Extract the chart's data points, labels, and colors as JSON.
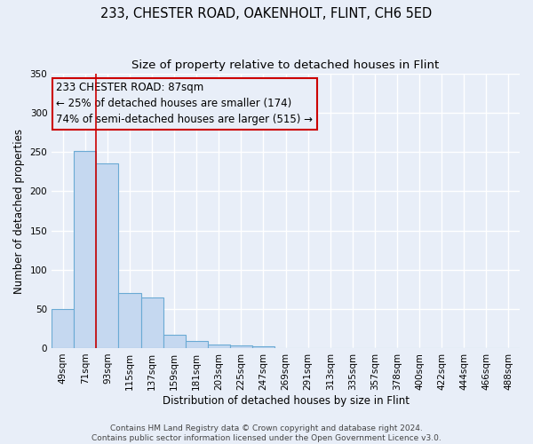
{
  "title1": "233, CHESTER ROAD, OAKENHOLT, FLINT, CH6 5ED",
  "title2": "Size of property relative to detached houses in Flint",
  "xlabel": "Distribution of detached houses by size in Flint",
  "ylabel": "Number of detached properties",
  "bar_labels": [
    "49sqm",
    "71sqm",
    "93sqm",
    "115sqm",
    "137sqm",
    "159sqm",
    "181sqm",
    "203sqm",
    "225sqm",
    "247sqm",
    "269sqm",
    "291sqm",
    "313sqm",
    "335sqm",
    "357sqm",
    "378sqm",
    "400sqm",
    "422sqm",
    "444sqm",
    "466sqm",
    "488sqm"
  ],
  "bar_heights": [
    50,
    252,
    236,
    70,
    65,
    17,
    9,
    5,
    3,
    2,
    0,
    0,
    0,
    0,
    0,
    0,
    0,
    0,
    0,
    0,
    0
  ],
  "bar_color": "#c5d8f0",
  "bar_edgecolor": "#6aaad4",
  "red_line_x": 1.5,
  "annotation_text": "233 CHESTER ROAD: 87sqm\n← 25% of detached houses are smaller (174)\n74% of semi-detached houses are larger (515) →",
  "annotation_box_edgecolor": "#cc0000",
  "annotation_fontsize": 8.5,
  "ylim": [
    0,
    350
  ],
  "yticks": [
    0,
    50,
    100,
    150,
    200,
    250,
    300,
    350
  ],
  "footer1": "Contains HM Land Registry data © Crown copyright and database right 2024.",
  "footer2": "Contains public sector information licensed under the Open Government Licence v3.0.",
  "background_color": "#e8eef8",
  "grid_color": "#ffffff",
  "title_fontsize": 10.5,
  "subtitle_fontsize": 9.5,
  "axis_label_fontsize": 8.5,
  "tick_fontsize": 7.5,
  "footer_fontsize": 6.5
}
